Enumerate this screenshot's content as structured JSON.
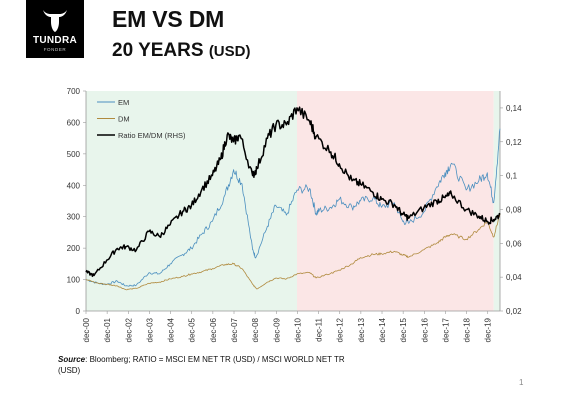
{
  "logo": {
    "name": "TUNDRA",
    "sub": "FONDER"
  },
  "header": {
    "title": "EM VS DM",
    "subtitle": "20 YEARS",
    "subtitle_unit": "(USD)"
  },
  "footer": {
    "source_label": "Source",
    "source_text": ": Bloomberg; RATIO = MSCI EM NET TR (USD) / MSCI WORLD NET TR (USD)",
    "page_number": "1"
  },
  "colors": {
    "em": "#4b8fbf",
    "dm": "#b08a3e",
    "ratio": "#000000",
    "zone_green": "#e8f5ec",
    "zone_red": "#fbe6e6"
  },
  "chart_data": {
    "type": "line",
    "title": "",
    "x_ticks": [
      "dec-00",
      "dec-01",
      "dec-02",
      "dec-03",
      "dec-04",
      "dec-05",
      "dec-06",
      "dec-07",
      "dec-08",
      "dec-09",
      "dec-10",
      "dec-11",
      "dec-12",
      "dec-13",
      "dec-14",
      "dec-15",
      "dec-16",
      "dec-17",
      "dec-18",
      "dec-19"
    ],
    "x_range": [
      2000.92,
      2020.5
    ],
    "y_left": {
      "min": 0,
      "max": 700,
      "ticks": [
        "0",
        "100",
        "200",
        "300",
        "400",
        "500",
        "600",
        "700"
      ]
    },
    "y_right": {
      "min": 0.02,
      "max": 0.15,
      "ticks": [
        "0,02",
        "0,04",
        "0,06",
        "0,08",
        "0,1",
        "0,12",
        "0,14"
      ]
    },
    "legend_position": "top-left",
    "background_zones": [
      {
        "from": 2000.92,
        "to": 2010.9,
        "color": "green"
      },
      {
        "from": 2010.9,
        "to": 2020.2,
        "color": "red"
      },
      {
        "from": 2020.2,
        "to": 2020.5,
        "color": "green"
      }
    ],
    "series": [
      {
        "name": "EM",
        "axis": "left",
        "points": [
          [
            2000.92,
            100
          ],
          [
            2001.5,
            88
          ],
          [
            2001.9,
            85
          ],
          [
            2002.4,
            95
          ],
          [
            2002.8,
            80
          ],
          [
            2003.3,
            82
          ],
          [
            2003.9,
            122
          ],
          [
            2004.4,
            118
          ],
          [
            2004.9,
            150
          ],
          [
            2005.5,
            180
          ],
          [
            2005.9,
            200
          ],
          [
            2006.4,
            245
          ],
          [
            2006.9,
            285
          ],
          [
            2007.5,
            370
          ],
          [
            2007.9,
            450
          ],
          [
            2008.3,
            405
          ],
          [
            2008.8,
            195
          ],
          [
            2008.95,
            170
          ],
          [
            2009.5,
            270
          ],
          [
            2009.9,
            335
          ],
          [
            2010.4,
            305
          ],
          [
            2010.9,
            385
          ],
          [
            2011.5,
            390
          ],
          [
            2011.8,
            310
          ],
          [
            2011.95,
            320
          ],
          [
            2012.5,
            330
          ],
          [
            2012.9,
            355
          ],
          [
            2013.5,
            330
          ],
          [
            2013.9,
            350
          ],
          [
            2014.5,
            360
          ],
          [
            2014.9,
            330
          ],
          [
            2015.5,
            345
          ],
          [
            2015.9,
            285
          ],
          [
            2016.2,
            280
          ],
          [
            2016.9,
            315
          ],
          [
            2017.5,
            395
          ],
          [
            2017.9,
            440
          ],
          [
            2018.2,
            470
          ],
          [
            2018.9,
            385
          ],
          [
            2019.5,
            415
          ],
          [
            2019.9,
            440
          ],
          [
            2020.2,
            345
          ],
          [
            2020.5,
            580
          ]
        ]
      },
      {
        "name": "DM",
        "axis": "left",
        "points": [
          [
            2000.92,
            100
          ],
          [
            2001.5,
            88
          ],
          [
            2001.9,
            85
          ],
          [
            2002.4,
            80
          ],
          [
            2002.8,
            68
          ],
          [
            2003.3,
            72
          ],
          [
            2003.9,
            88
          ],
          [
            2004.4,
            92
          ],
          [
            2004.9,
            102
          ],
          [
            2005.5,
            110
          ],
          [
            2005.9,
            118
          ],
          [
            2006.4,
            125
          ],
          [
            2006.9,
            135
          ],
          [
            2007.5,
            148
          ],
          [
            2007.9,
            150
          ],
          [
            2008.3,
            135
          ],
          [
            2008.8,
            85
          ],
          [
            2009.0,
            70
          ],
          [
            2009.5,
            92
          ],
          [
            2009.9,
            105
          ],
          [
            2010.4,
            102
          ],
          [
            2010.9,
            118
          ],
          [
            2011.5,
            122
          ],
          [
            2011.8,
            105
          ],
          [
            2012.5,
            120
          ],
          [
            2012.9,
            130
          ],
          [
            2013.5,
            150
          ],
          [
            2013.9,
            170
          ],
          [
            2014.5,
            180
          ],
          [
            2014.9,
            182
          ],
          [
            2015.5,
            190
          ],
          [
            2015.9,
            178
          ],
          [
            2016.2,
            172
          ],
          [
            2016.9,
            195
          ],
          [
            2017.5,
            215
          ],
          [
            2017.9,
            235
          ],
          [
            2018.2,
            245
          ],
          [
            2018.9,
            228
          ],
          [
            2019.5,
            260
          ],
          [
            2019.9,
            285
          ],
          [
            2020.2,
            235
          ],
          [
            2020.5,
            310
          ]
        ]
      },
      {
        "name": "Ratio EM/DM (RHS)",
        "axis": "right",
        "points": [
          [
            2000.92,
            0.043
          ],
          [
            2001.3,
            0.041
          ],
          [
            2001.9,
            0.05
          ],
          [
            2002.4,
            0.057
          ],
          [
            2002.8,
            0.058
          ],
          [
            2003.3,
            0.056
          ],
          [
            2003.9,
            0.067
          ],
          [
            2004.4,
            0.064
          ],
          [
            2004.9,
            0.071
          ],
          [
            2005.5,
            0.079
          ],
          [
            2005.9,
            0.082
          ],
          [
            2006.4,
            0.092
          ],
          [
            2006.9,
            0.1
          ],
          [
            2007.3,
            0.11
          ],
          [
            2007.6,
            0.124
          ],
          [
            2007.9,
            0.12
          ],
          [
            2008.2,
            0.124
          ],
          [
            2008.8,
            0.1
          ],
          [
            2009.0,
            0.104
          ],
          [
            2009.5,
            0.122
          ],
          [
            2009.9,
            0.13
          ],
          [
            2010.4,
            0.13
          ],
          [
            2010.9,
            0.14
          ],
          [
            2011.5,
            0.132
          ],
          [
            2011.8,
            0.123
          ],
          [
            2012.5,
            0.114
          ],
          [
            2012.9,
            0.107
          ],
          [
            2013.5,
            0.097
          ],
          [
            2013.9,
            0.095
          ],
          [
            2014.5,
            0.09
          ],
          [
            2014.9,
            0.086
          ],
          [
            2015.5,
            0.083
          ],
          [
            2015.9,
            0.077
          ],
          [
            2016.2,
            0.075
          ],
          [
            2016.9,
            0.081
          ],
          [
            2017.5,
            0.085
          ],
          [
            2017.9,
            0.087
          ],
          [
            2018.2,
            0.089
          ],
          [
            2018.9,
            0.08
          ],
          [
            2019.5,
            0.076
          ],
          [
            2019.9,
            0.073
          ],
          [
            2020.2,
            0.074
          ],
          [
            2020.5,
            0.077
          ]
        ]
      }
    ]
  }
}
